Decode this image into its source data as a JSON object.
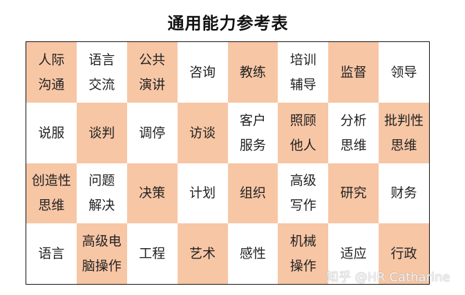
{
  "title": "通用能力参考表",
  "highlight_color": "#f7c6a5",
  "cells": [
    [
      "人际\n沟通",
      "语言\n交流",
      "公共\n演讲",
      "咨询",
      "教练",
      "培训\n辅导",
      "监督",
      "领导"
    ],
    [
      "说服",
      "谈判",
      "调停",
      "访谈",
      "客户\n服务",
      "照顾\n他人",
      "分析\n思维",
      "批判性\n思维"
    ],
    [
      "创造性\n思维",
      "问题\n解决",
      "决策",
      "计划",
      "组织",
      "高级\n写作",
      "研究",
      "财务"
    ],
    [
      "语言",
      "高级电\n脑操作",
      "工程",
      "艺术",
      "感性",
      "机械\n操作",
      "适应",
      "行政"
    ]
  ],
  "watermark": "知乎 @HR Catharine"
}
